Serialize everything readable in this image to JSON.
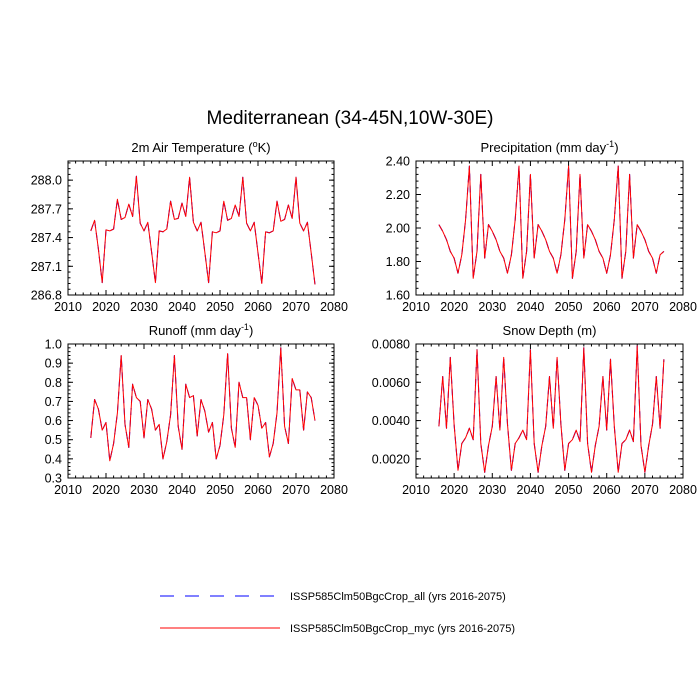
{
  "figure": {
    "title": "Mediterranean (34-45N,10W-30E)"
  },
  "legend": [
    {
      "label": "ISSP585Clm50BgcCrop_all (yrs 2016-2075)",
      "color": "#0000ff",
      "style": "dashed"
    },
    {
      "label": "ISSP585Clm50BgcCrop_myc (yrs 2016-2075)",
      "color": "#ff0000",
      "style": "solid"
    }
  ],
  "chart_data": [
    {
      "type": "line",
      "title": "2m Air Temperature (",
      "title_unit": "o",
      "title_tail": "K)",
      "xlim": [
        2010,
        2080
      ],
      "xticks": [
        2010,
        2020,
        2030,
        2040,
        2050,
        2060,
        2070,
        2080
      ],
      "ylim": [
        286.8,
        288.2
      ],
      "yticks": [
        286.8,
        287.1,
        287.4,
        287.7,
        288.0
      ],
      "ytick_labels": [
        "286.8",
        "287.1",
        "287.4",
        "287.7",
        "288.0"
      ],
      "x_start": 2016,
      "series": [
        {
          "name": "ISSP585Clm50BgcCrop_all",
          "values": [
            287.47,
            287.58,
            287.28,
            286.93,
            287.48,
            287.47,
            287.49,
            287.8,
            287.59,
            287.61,
            287.75,
            287.62,
            288.04,
            287.55,
            287.47,
            287.56,
            287.25,
            286.93,
            287.47,
            287.46,
            287.49,
            287.78,
            287.59,
            287.6,
            287.76,
            287.62,
            288.03,
            287.56,
            287.47,
            287.56,
            287.25,
            286.93,
            287.46,
            287.45,
            287.47,
            287.78,
            287.58,
            287.6,
            287.74,
            287.62,
            288.03,
            287.55,
            287.47,
            287.56,
            287.24,
            286.92,
            287.46,
            287.45,
            287.47,
            287.78,
            287.57,
            287.59,
            287.74,
            287.6,
            288.03,
            287.55,
            287.47,
            287.56,
            287.24,
            286.91
          ]
        },
        {
          "name": "ISSP585Clm50BgcCrop_myc",
          "values": [
            287.47,
            287.58,
            287.28,
            286.93,
            287.48,
            287.47,
            287.49,
            287.8,
            287.59,
            287.61,
            287.75,
            287.62,
            288.04,
            287.55,
            287.47,
            287.56,
            287.25,
            286.93,
            287.47,
            287.46,
            287.49,
            287.78,
            287.59,
            287.6,
            287.76,
            287.62,
            288.03,
            287.56,
            287.47,
            287.56,
            287.25,
            286.93,
            287.46,
            287.45,
            287.47,
            287.78,
            287.58,
            287.6,
            287.74,
            287.62,
            288.03,
            287.55,
            287.47,
            287.56,
            287.24,
            286.92,
            287.46,
            287.45,
            287.47,
            287.78,
            287.57,
            287.59,
            287.74,
            287.6,
            288.03,
            287.55,
            287.47,
            287.56,
            287.24,
            286.91
          ]
        }
      ]
    },
    {
      "type": "line",
      "title": "Precipitation (mm day",
      "title_unit": "-1",
      "title_tail": ")",
      "xlim": [
        2010,
        2080
      ],
      "xticks": [
        2010,
        2020,
        2030,
        2040,
        2050,
        2060,
        2070,
        2080
      ],
      "ylim": [
        1.6,
        2.4
      ],
      "yticks": [
        1.6,
        1.8,
        2.0,
        2.2,
        2.4
      ],
      "ytick_labels": [
        "1.60",
        "1.80",
        "2.00",
        "2.20",
        "2.40"
      ],
      "x_start": 2016,
      "series": [
        {
          "name": "ISSP585Clm50BgcCrop_all",
          "values": [
            2.02,
            1.98,
            1.93,
            1.86,
            1.82,
            1.73,
            1.84,
            2.05,
            2.37,
            1.7,
            1.86,
            2.32,
            1.82,
            2.02,
            1.98,
            1.93,
            1.86,
            1.82,
            1.73,
            1.84,
            2.05,
            2.37,
            1.7,
            1.86,
            2.32,
            1.82,
            2.02,
            1.98,
            1.93,
            1.86,
            1.82,
            1.73,
            1.84,
            2.05,
            2.37,
            1.7,
            1.86,
            2.32,
            1.82,
            2.02,
            1.98,
            1.93,
            1.86,
            1.82,
            1.73,
            1.84,
            2.05,
            2.37,
            1.7,
            1.86,
            2.32,
            1.82,
            2.02,
            1.98,
            1.93,
            1.86,
            1.82,
            1.73,
            1.84,
            1.86
          ]
        },
        {
          "name": "ISSP585Clm50BgcCrop_myc",
          "values": [
            2.02,
            1.98,
            1.93,
            1.86,
            1.82,
            1.73,
            1.84,
            2.05,
            2.37,
            1.7,
            1.86,
            2.32,
            1.82,
            2.02,
            1.98,
            1.93,
            1.86,
            1.82,
            1.73,
            1.84,
            2.05,
            2.37,
            1.7,
            1.86,
            2.32,
            1.82,
            2.02,
            1.98,
            1.93,
            1.86,
            1.82,
            1.73,
            1.84,
            2.05,
            2.37,
            1.7,
            1.86,
            2.32,
            1.82,
            2.02,
            1.98,
            1.93,
            1.86,
            1.82,
            1.73,
            1.84,
            2.05,
            2.37,
            1.7,
            1.86,
            2.32,
            1.82,
            2.02,
            1.98,
            1.93,
            1.86,
            1.82,
            1.73,
            1.84,
            1.86
          ]
        }
      ]
    },
    {
      "type": "line",
      "title": "Runoff (mm day",
      "title_unit": "-1",
      "title_tail": ")",
      "xlim": [
        2010,
        2080
      ],
      "xticks": [
        2010,
        2020,
        2030,
        2040,
        2050,
        2060,
        2070,
        2080
      ],
      "ylim": [
        0.3,
        1.0
      ],
      "yticks": [
        0.3,
        0.4,
        0.5,
        0.6,
        0.7,
        0.8,
        0.9,
        1.0
      ],
      "ytick_labels": [
        "0.3",
        "0.4",
        "0.5",
        "0.6",
        "0.7",
        "0.8",
        "0.9",
        "1.0"
      ],
      "x_start": 2016,
      "series": [
        {
          "name": "ISSP585Clm50BgcCrop_all",
          "values": [
            0.51,
            0.71,
            0.66,
            0.55,
            0.59,
            0.39,
            0.48,
            0.64,
            0.94,
            0.58,
            0.46,
            0.79,
            0.72,
            0.7,
            0.51,
            0.71,
            0.66,
            0.55,
            0.58,
            0.4,
            0.49,
            0.63,
            0.94,
            0.57,
            0.45,
            0.79,
            0.72,
            0.73,
            0.52,
            0.71,
            0.65,
            0.54,
            0.59,
            0.4,
            0.47,
            0.63,
            0.95,
            0.56,
            0.46,
            0.8,
            0.72,
            0.72,
            0.5,
            0.72,
            0.68,
            0.56,
            0.59,
            0.41,
            0.48,
            0.64,
            0.98,
            0.57,
            0.48,
            0.82,
            0.76,
            0.76,
            0.55,
            0.75,
            0.72,
            0.6
          ]
        },
        {
          "name": "ISSP585Clm50BgcCrop_myc",
          "values": [
            0.51,
            0.71,
            0.66,
            0.55,
            0.59,
            0.39,
            0.48,
            0.64,
            0.94,
            0.58,
            0.46,
            0.79,
            0.72,
            0.7,
            0.51,
            0.71,
            0.66,
            0.55,
            0.58,
            0.4,
            0.49,
            0.63,
            0.94,
            0.57,
            0.45,
            0.79,
            0.72,
            0.73,
            0.52,
            0.71,
            0.65,
            0.54,
            0.59,
            0.4,
            0.47,
            0.63,
            0.95,
            0.56,
            0.46,
            0.8,
            0.72,
            0.72,
            0.5,
            0.72,
            0.68,
            0.56,
            0.59,
            0.41,
            0.48,
            0.64,
            0.98,
            0.57,
            0.48,
            0.82,
            0.76,
            0.76,
            0.55,
            0.75,
            0.72,
            0.6
          ]
        }
      ]
    },
    {
      "type": "line",
      "title": "Snow Depth (m)",
      "title_unit": "",
      "title_tail": "",
      "xlim": [
        2010,
        2080
      ],
      "xticks": [
        2010,
        2020,
        2030,
        2040,
        2050,
        2060,
        2070,
        2080
      ],
      "ylim": [
        0.001,
        0.008
      ],
      "yticks": [
        0.002,
        0.004,
        0.006,
        0.008
      ],
      "ytick_labels": [
        "0.0020",
        "0.0040",
        "0.0060",
        "0.0080"
      ],
      "x_start": 2016,
      "series": [
        {
          "name": "ISSP585Clm50BgcCrop_all",
          "values": [
            0.0037,
            0.0063,
            0.0036,
            0.0073,
            0.0038,
            0.0014,
            0.0028,
            0.0031,
            0.0036,
            0.003,
            0.0077,
            0.0028,
            0.0013,
            0.0027,
            0.0037,
            0.0063,
            0.0035,
            0.0073,
            0.0038,
            0.0014,
            0.0028,
            0.0031,
            0.0035,
            0.003,
            0.0077,
            0.0028,
            0.0013,
            0.0027,
            0.0037,
            0.0063,
            0.0036,
            0.0073,
            0.0038,
            0.0014,
            0.0028,
            0.003,
            0.0035,
            0.0029,
            0.0078,
            0.0028,
            0.0013,
            0.0027,
            0.0037,
            0.0063,
            0.0035,
            0.0072,
            0.0037,
            0.0013,
            0.0028,
            0.003,
            0.0035,
            0.0029,
            0.0079,
            0.0027,
            0.0013,
            0.0027,
            0.0038,
            0.0063,
            0.0036,
            0.0072
          ]
        },
        {
          "name": "ISSP585Clm50BgcCrop_myc",
          "values": [
            0.0037,
            0.0063,
            0.0036,
            0.0073,
            0.0038,
            0.0014,
            0.0028,
            0.0031,
            0.0036,
            0.003,
            0.0077,
            0.0028,
            0.0013,
            0.0027,
            0.0037,
            0.0063,
            0.0035,
            0.0073,
            0.0038,
            0.0014,
            0.0028,
            0.0031,
            0.0035,
            0.003,
            0.0077,
            0.0028,
            0.0013,
            0.0027,
            0.0037,
            0.0063,
            0.0036,
            0.0073,
            0.0038,
            0.0014,
            0.0028,
            0.003,
            0.0035,
            0.0029,
            0.0078,
            0.0028,
            0.0013,
            0.0027,
            0.0037,
            0.0063,
            0.0035,
            0.0072,
            0.0037,
            0.0013,
            0.0028,
            0.003,
            0.0035,
            0.0029,
            0.0079,
            0.0027,
            0.0013,
            0.0027,
            0.0038,
            0.0063,
            0.0036,
            0.0072
          ]
        }
      ]
    }
  ]
}
